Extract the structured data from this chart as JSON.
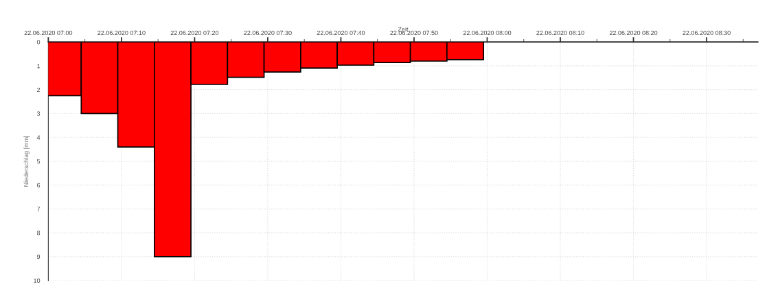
{
  "chart_data": {
    "type": "bar",
    "xlabel": "Zeit",
    "ylabel": "Niederschlag [mm]",
    "x": [
      "2020-06-22T07:02",
      "2020-06-22T07:07",
      "2020-06-22T07:12",
      "2020-06-22T07:17",
      "2020-06-22T07:22",
      "2020-06-22T07:27",
      "2020-06-22T07:32",
      "2020-06-22T07:37",
      "2020-06-22T07:42",
      "2020-06-22T07:47",
      "2020-06-22T07:52",
      "2020-06-22T07:57"
    ],
    "series": [
      {
        "color": "#ff0000",
        "values": [
          2.25,
          3.0,
          4.4,
          9.0,
          1.78,
          1.48,
          1.26,
          1.09,
          0.97,
          0.86,
          0.8,
          0.74
        ]
      }
    ],
    "xlim": [
      "2020-06-22T07:00",
      "2020-06-22T08:37"
    ],
    "xticks": [
      {
        "value": "2020-06-22T07:00",
        "label": "22.06.2020 07:00"
      },
      {
        "value": "2020-06-22T07:05",
        "label": null
      },
      {
        "value": "2020-06-22T07:10",
        "label": "22.06.2020 07:10"
      },
      {
        "value": "2020-06-22T07:15",
        "label": null
      },
      {
        "value": "2020-06-22T07:20",
        "label": "22.06.2020 07:20"
      },
      {
        "value": "2020-06-22T07:25",
        "label": null
      },
      {
        "value": "2020-06-22T07:30",
        "label": "22.06.2020 07:30"
      },
      {
        "value": "2020-06-22T07:35",
        "label": null
      },
      {
        "value": "2020-06-22T07:40",
        "label": "22.06.2020 07:40"
      },
      {
        "value": "2020-06-22T07:45",
        "label": null
      },
      {
        "value": "2020-06-22T07:50",
        "label": "22.06.2020 07:50"
      },
      {
        "value": "2020-06-22T07:55",
        "label": null
      },
      {
        "value": "2020-06-22T08:00",
        "label": "22.06.2020 08:00"
      },
      {
        "value": "2020-06-22T08:05",
        "label": null
      },
      {
        "value": "2020-06-22T08:10",
        "label": "22.06.2020 08:10"
      },
      {
        "value": "2020-06-22T08:15",
        "label": null
      },
      {
        "value": "2020-06-22T08:20",
        "label": "22.06.2020 08:20"
      },
      {
        "value": "2020-06-22T08:25",
        "label": null
      },
      {
        "value": "2020-06-22T08:30",
        "label": "22.06.2020 08:30"
      },
      {
        "value": "2020-06-22T08:35",
        "label": null
      }
    ],
    "ylim": [
      10,
      0
    ],
    "yticks": [
      0,
      1,
      2,
      3,
      4,
      5,
      6,
      7,
      8,
      9,
      10
    ],
    "grid": true,
    "legend": false
  }
}
